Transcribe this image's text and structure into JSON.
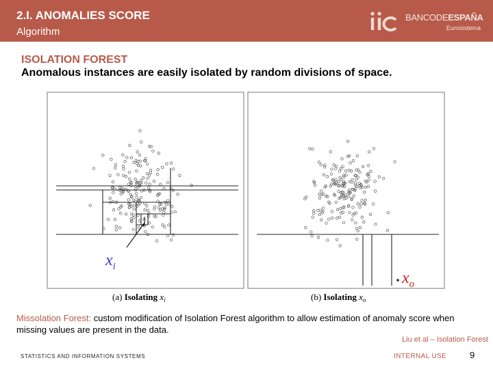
{
  "header": {
    "title": "2.I. ANOMALIES SCORE",
    "subtitle": "Algorithm",
    "logo_bank_prefix": "BANCODE",
    "logo_bank_bold": "ESPAÑA",
    "logo_sub": "Eurosistema"
  },
  "slide": {
    "section_title": "ISOLATION FOREST",
    "subheading": "Anomalous instances are easily isolated by random divisions of space.",
    "caption_highlight": "Missolation Forest:",
    "caption_text": " custom modification of Isolation Forest algorithm to allow estimation of anomaly score when missing values are present in the data.",
    "citation": "Liu et al – Isolation Forest"
  },
  "figure": {
    "panel_a": {
      "caption_prefix": "(a)",
      "caption_word": "Isolating",
      "point_label": "x",
      "point_sub": "i"
    },
    "panel_b": {
      "caption_prefix": "(b)",
      "caption_word": "Isolating",
      "point_label": "x",
      "point_sub": "o"
    },
    "label_color": "#3b3bd8",
    "outlier_color": "#cc2222"
  },
  "footer": {
    "left_text": "STATISTICS AND INFORMATION SYSTEMS",
    "classification": "INTERNAL USE",
    "page_number": "9"
  },
  "colors": {
    "accent": "#b85a4a",
    "white": "#ffffff"
  }
}
